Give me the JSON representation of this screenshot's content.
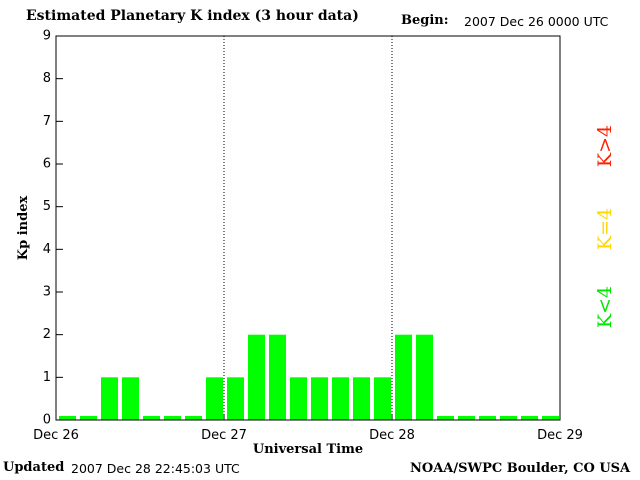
{
  "header": {
    "title": "Estimated Planetary K index (3 hour data)",
    "begin_label": "Begin:",
    "begin_value": "2007 Dec 26 0000 UTC"
  },
  "footer": {
    "updated_label": "Updated",
    "updated_value": "2007 Dec 28 22:45:03 UTC",
    "source": "NOAA/SWPC Boulder, CO USA"
  },
  "legend": [
    {
      "label": "K>4",
      "color": "#ff2000"
    },
    {
      "label": "K=4",
      "color": "#ffd700"
    },
    {
      "label": "K<4",
      "color": "#00e600"
    }
  ],
  "chart_data": {
    "type": "bar",
    "title": "Estimated Planetary K index (3 hour data)",
    "xlabel": "Universal Time",
    "ylabel": "Kp index",
    "ylim": [
      0,
      9
    ],
    "yticks": [
      "0",
      "1",
      "2",
      "3",
      "4",
      "5",
      "6",
      "7",
      "8",
      "9"
    ],
    "xtick_labels": [
      "Dec 26",
      "Dec 27",
      "Dec 28",
      "Dec 29"
    ],
    "day_dividers": [
      "Dec 27",
      "Dec 28"
    ],
    "bar_color": "#00ff00",
    "interval_hours": 3,
    "values": [
      0,
      0,
      1,
      1,
      0,
      0,
      0,
      1,
      1,
      2,
      2,
      1,
      1,
      1,
      1,
      1,
      2,
      2,
      0,
      0,
      0,
      0,
      0,
      0
    ]
  }
}
